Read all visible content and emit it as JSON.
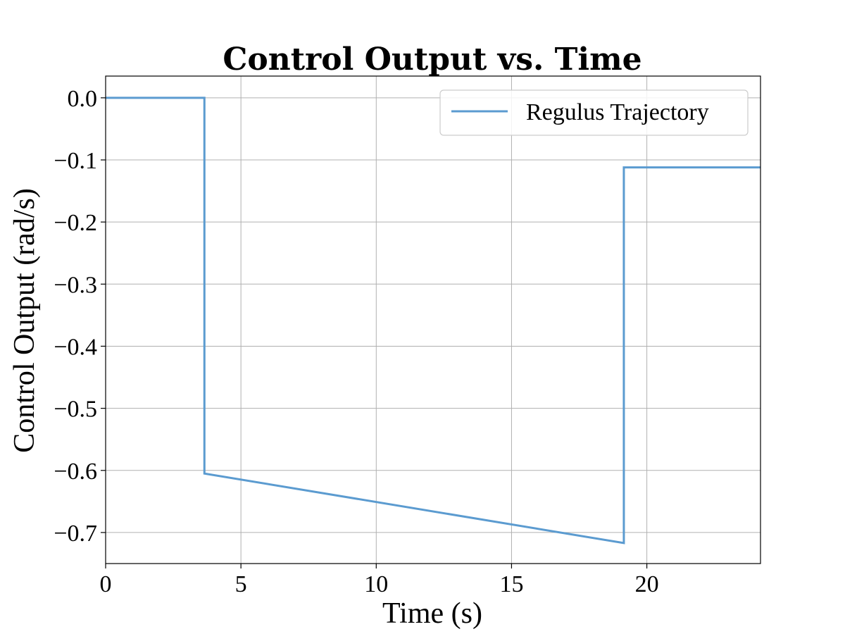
{
  "chart_data": {
    "type": "line",
    "title": "Control Output vs. Time",
    "xlabel": "Time (s)",
    "ylabel": "Control Output (rad/s)",
    "xlim": [
      0,
      24.2
    ],
    "ylim": [
      -0.75,
      0.035
    ],
    "xticks": [
      0,
      5,
      10,
      15,
      20
    ],
    "xtick_labels": [
      "0",
      "5",
      "10",
      "15",
      "20"
    ],
    "yticks": [
      0.0,
      -0.1,
      -0.2,
      -0.3,
      -0.4,
      -0.5,
      -0.6,
      -0.7
    ],
    "ytick_labels": [
      "0.0",
      "−0.1",
      "−0.2",
      "−0.3",
      "−0.4",
      "−0.5",
      "−0.6",
      "−0.7"
    ],
    "grid": true,
    "legend_position": "top-right",
    "series": [
      {
        "name": "Regulus Trajectory",
        "color": "#5b9bd0",
        "x": [
          0,
          3.65,
          3.65,
          19.15,
          19.15,
          24.2
        ],
        "y": [
          0.0,
          0.0,
          -0.605,
          -0.717,
          -0.112,
          -0.112
        ]
      }
    ]
  }
}
